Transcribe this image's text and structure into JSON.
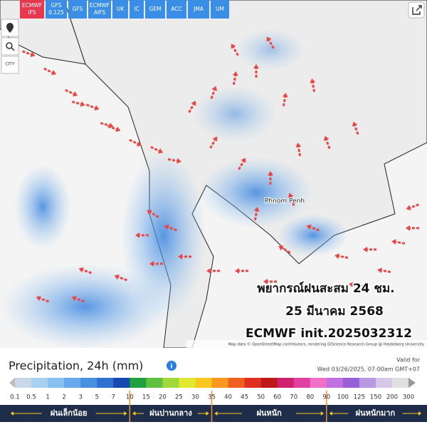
{
  "buttons": [
    [
      "ECMWF",
      "IFS"
    ],
    [
      "GFS",
      "0.125"
    ],
    [
      "GFS"
    ],
    [
      "ECMWF",
      "AIFS"
    ],
    [
      "UK"
    ],
    [
      "IC"
    ],
    [
      "GEM"
    ],
    [
      "ACC"
    ],
    [
      "JMA"
    ],
    [
      "UM"
    ]
  ],
  "tools": {
    "city": "CITY"
  },
  "map": {
    "city_label": "Phnom Penh",
    "overlay": [
      "พยากรณ์ฝนสะสม 24 ชม.",
      "25 มีนาคม 2568",
      "ECMWF init.2025032312"
    ],
    "attribution": "Map data © OpenStreetMap contributors, rendering GIScience Research Group @ Heidelberg University"
  },
  "legend": {
    "title": "Precipitation, 24h (mm)",
    "valid_label": "Valid for",
    "valid_time": "Wed 03/26/2025, 07:00am GMT+07",
    "scale": [
      0.1,
      0.5,
      1,
      2,
      3,
      5,
      7,
      10,
      15,
      20,
      25,
      30,
      35,
      40,
      45,
      50,
      60,
      70,
      80,
      90,
      100,
      125,
      150,
      200,
      300
    ],
    "colors": [
      "#c8d8e8",
      "#a8d0f0",
      "#88c0f0",
      "#68a8ec",
      "#4a90e0",
      "#3070d0",
      "#1848b0",
      "#20a040",
      "#60c040",
      "#a0d840",
      "#e0e830",
      "#f8c820",
      "#f89820",
      "#f06020",
      "#e03020",
      "#c01818",
      "#d02070",
      "#e040a0",
      "#f070c8",
      "#c070e0",
      "#9860d8",
      "#b898e0",
      "#d8c8e8",
      "#e0e0e0"
    ],
    "categories": [
      "ฝนเล็กน้อย",
      "ฝนปานกลาง",
      "ฝนหนัก",
      "ฝนหนักมาก"
    ]
  }
}
